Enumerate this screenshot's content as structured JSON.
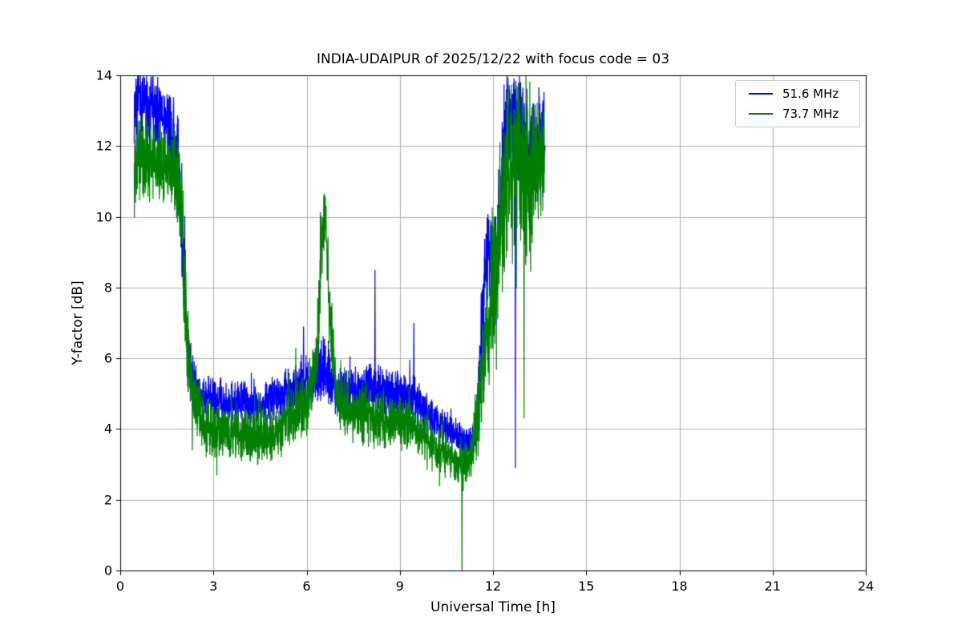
{
  "chart_data": {
    "type": "line",
    "title": "INDIA-UDAIPUR of 2025/12/22 with focus code = 03",
    "xlabel": "Universal Time [h]",
    "ylabel": "Y-factor [dB]",
    "xlim": [
      0,
      24
    ],
    "ylim": [
      0,
      14
    ],
    "xticks": [
      0,
      3,
      6,
      9,
      12,
      15,
      18,
      21,
      24
    ],
    "yticks": [
      0,
      2,
      4,
      6,
      8,
      10,
      12,
      14
    ],
    "grid": true,
    "grid_color": "#b0b0b0",
    "background": "#ffffff",
    "legend_position": "upper right",
    "series": [
      {
        "name": "51.6 MHz",
        "color": "#0000ff",
        "x_start": 0.45,
        "x_end": 13.68,
        "step": 0.005,
        "seed": 7,
        "envelope": [
          [
            0.45,
            13.2,
            0.8
          ],
          [
            1.0,
            13.2,
            0.8
          ],
          [
            1.35,
            12.8,
            0.8
          ],
          [
            1.6,
            12.3,
            0.9
          ],
          [
            1.85,
            11.5,
            1.2
          ],
          [
            2.0,
            9.2,
            1.5
          ],
          [
            2.15,
            6.6,
            0.8
          ],
          [
            2.3,
            5.6,
            0.5
          ],
          [
            2.6,
            5.0,
            0.45
          ],
          [
            3.5,
            4.8,
            0.45
          ],
          [
            4.5,
            4.7,
            0.45
          ],
          [
            5.3,
            5.0,
            0.5
          ],
          [
            5.8,
            5.3,
            0.6
          ],
          [
            6.2,
            5.3,
            0.55
          ],
          [
            6.55,
            5.8,
            0.7
          ],
          [
            6.9,
            5.1,
            0.5
          ],
          [
            7.5,
            5.0,
            0.5
          ],
          [
            8.15,
            5.2,
            0.55
          ],
          [
            8.8,
            5.0,
            0.5
          ],
          [
            9.4,
            4.9,
            0.55
          ],
          [
            10.0,
            4.4,
            0.4
          ],
          [
            10.7,
            3.9,
            0.35
          ],
          [
            11.2,
            3.6,
            0.3
          ],
          [
            11.45,
            3.8,
            0.5
          ],
          [
            11.6,
            6.2,
            1.0
          ],
          [
            11.75,
            8.8,
            0.9
          ],
          [
            11.95,
            9.0,
            0.9
          ],
          [
            12.1,
            8.2,
            1.4
          ],
          [
            12.35,
            12.0,
            1.4
          ],
          [
            12.6,
            13.0,
            1.0
          ],
          [
            12.85,
            12.4,
            1.4
          ],
          [
            13.1,
            12.0,
            1.4
          ],
          [
            13.4,
            12.2,
            0.9
          ],
          [
            13.68,
            12.0,
            1.1
          ]
        ],
        "spikes": [
          [
            5.9,
            6.9
          ],
          [
            8.2,
            8.5
          ],
          [
            9.45,
            7.0
          ],
          [
            12.72,
            2.9
          ]
        ]
      },
      {
        "name": "73.7 MHz",
        "color": "#008000",
        "x_start": 0.45,
        "x_end": 13.65,
        "step": 0.005,
        "seed": 13,
        "envelope": [
          [
            0.45,
            11.6,
            0.9
          ],
          [
            1.0,
            11.7,
            0.9
          ],
          [
            1.5,
            11.4,
            0.8
          ],
          [
            1.9,
            11.0,
            1.0
          ],
          [
            2.05,
            8.6,
            1.4
          ],
          [
            2.2,
            5.9,
            0.8
          ],
          [
            2.4,
            4.8,
            0.7
          ],
          [
            2.7,
            4.1,
            0.6
          ],
          [
            3.5,
            3.9,
            0.6
          ],
          [
            4.3,
            3.8,
            0.6
          ],
          [
            5.0,
            3.9,
            0.6
          ],
          [
            5.6,
            4.4,
            0.65
          ],
          [
            6.1,
            4.8,
            0.65
          ],
          [
            6.35,
            6.5,
            1.0
          ],
          [
            6.5,
            9.3,
            0.9
          ],
          [
            6.6,
            10.1,
            0.45
          ],
          [
            6.75,
            7.2,
            1.0
          ],
          [
            6.95,
            5.0,
            0.6
          ],
          [
            7.4,
            4.4,
            0.6
          ],
          [
            8.2,
            4.3,
            0.6
          ],
          [
            9.0,
            4.2,
            0.6
          ],
          [
            9.6,
            3.9,
            0.5
          ],
          [
            10.2,
            3.5,
            0.5
          ],
          [
            10.8,
            3.0,
            0.45
          ],
          [
            11.05,
            2.9,
            0.5
          ],
          [
            11.3,
            3.2,
            0.4
          ],
          [
            11.55,
            4.5,
            1.0
          ],
          [
            11.75,
            6.5,
            1.2
          ],
          [
            12.0,
            7.5,
            1.5
          ],
          [
            12.2,
            9.5,
            1.9
          ],
          [
            12.5,
            11.5,
            1.9
          ],
          [
            12.8,
            11.5,
            2.1
          ],
          [
            13.1,
            11.0,
            2.1
          ],
          [
            13.4,
            11.3,
            1.4
          ],
          [
            13.65,
            11.5,
            1.4
          ]
        ],
        "spikes": [
          [
            2.32,
            3.4
          ],
          [
            5.65,
            6.3
          ],
          [
            6.57,
            10.65
          ],
          [
            11.0,
            0.0
          ],
          [
            13.0,
            4.3
          ]
        ]
      }
    ]
  }
}
